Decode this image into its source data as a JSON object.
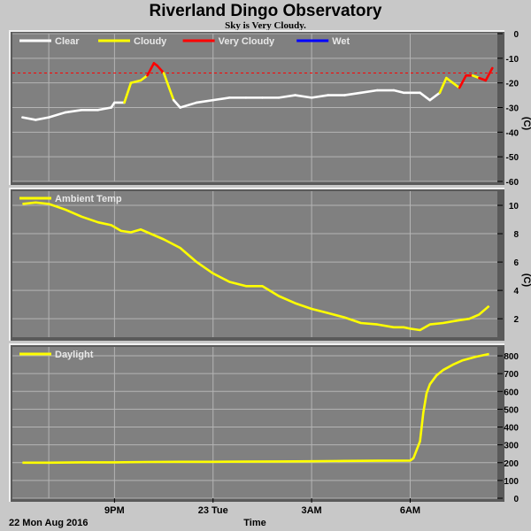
{
  "title": "Riverland Dingo Observatory",
  "subtitle": "Sky is Very Cloudy.",
  "x_axis": {
    "label": "Time",
    "start_label": "22 Mon Aug 2016",
    "ticks": [
      "9PM",
      "23 Tue",
      "3AM",
      "6AM"
    ]
  },
  "colors": {
    "page_bg": "#c8c8c8",
    "plot_bg": "#808080",
    "grid": "#b4b4b4",
    "clear": "#ffffff",
    "cloudy": "#ffff00",
    "very_cloudy": "#ff0000",
    "wet": "#0000ff",
    "ambient": "#ffff00",
    "daylight": "#ffff00",
    "threshold": "#ff0000"
  },
  "chart_data": [
    {
      "type": "line",
      "name": "sky",
      "legend": [
        {
          "label": "Clear",
          "color": "#ffffff"
        },
        {
          "label": "Cloudy",
          "color": "#ffff00"
        },
        {
          "label": "Very Cloudy",
          "color": "#ff0000"
        },
        {
          "label": "Wet",
          "color": "#0000ff"
        }
      ],
      "unit": "(C)",
      "ylim": [
        -60,
        0
      ],
      "yticks": [
        0,
        -10,
        -20,
        -30,
        -40,
        -50,
        -60
      ],
      "threshold": -16,
      "grid": true,
      "x_hours": [
        18.2,
        18.6,
        19.0,
        19.5,
        20.0,
        20.5,
        20.9,
        21.0,
        21.3,
        21.5,
        21.8,
        22.0,
        22.2,
        22.3,
        22.5,
        22.8,
        23.0,
        23.5,
        24.0,
        24.5,
        25.0,
        25.5,
        26.0,
        26.5,
        27.0,
        27.5,
        28.0,
        28.5,
        29.0,
        29.5,
        29.8,
        30.0,
        30.3,
        30.6,
        30.9,
        31.1,
        31.3,
        31.5,
        31.7,
        31.9,
        32.1,
        32.3,
        32.5
      ],
      "y_values": [
        -34,
        -35,
        -34,
        -32,
        -31,
        -31,
        -30,
        -28,
        -28,
        -20,
        -19,
        -17,
        -12,
        -13,
        -16,
        -27,
        -30,
        -28,
        -27,
        -26,
        -26,
        -26,
        -26,
        -25,
        -26,
        -25,
        -25,
        -24,
        -23,
        -23,
        -24,
        -24,
        -24,
        -27,
        -24,
        -18,
        -20,
        -22,
        -17,
        -17,
        -18,
        -19,
        -14
      ],
      "conditions": [
        "clear",
        "clear",
        "clear",
        "clear",
        "clear",
        "clear",
        "clear",
        "clear",
        "clear",
        "cloudy",
        "cloudy",
        "cloudy",
        "very_cloudy",
        "very_cloudy",
        "very_cloudy",
        "cloudy",
        "clear",
        "clear",
        "clear",
        "clear",
        "clear",
        "clear",
        "clear",
        "clear",
        "clear",
        "clear",
        "clear",
        "clear",
        "clear",
        "clear",
        "clear",
        "clear",
        "clear",
        "clear",
        "clear",
        "cloudy",
        "cloudy",
        "cloudy",
        "very_cloudy",
        "very_cloudy",
        "cloudy",
        "very_cloudy",
        "very_cloudy"
      ]
    },
    {
      "type": "line",
      "name": "ambient",
      "legend": [
        {
          "label": "Ambient Temp",
          "color": "#ffff00"
        }
      ],
      "unit": "(C)",
      "ylim": [
        0.7,
        11
      ],
      "yticks": [
        10,
        8,
        6,
        4,
        2
      ],
      "grid": true,
      "x_hours": [
        18.2,
        18.6,
        19.0,
        19.5,
        20.0,
        20.5,
        20.9,
        21.2,
        21.5,
        21.8,
        22.0,
        22.5,
        23.0,
        23.5,
        24.0,
        24.5,
        25.0,
        25.5,
        26.0,
        26.5,
        27.0,
        27.5,
        28.0,
        28.5,
        29.0,
        29.5,
        29.8,
        30.0,
        30.3,
        30.6,
        31.0,
        31.5,
        31.8,
        32.1,
        32.4
      ],
      "y_values": [
        10.1,
        10.2,
        10.1,
        9.7,
        9.2,
        8.8,
        8.6,
        8.2,
        8.1,
        8.3,
        8.1,
        7.6,
        7.0,
        6.0,
        5.2,
        4.6,
        4.3,
        4.3,
        3.6,
        3.1,
        2.7,
        2.4,
        2.1,
        1.7,
        1.6,
        1.4,
        1.4,
        1.3,
        1.2,
        1.6,
        1.7,
        1.9,
        2.0,
        2.3,
        2.9
      ]
    },
    {
      "type": "line",
      "name": "daylight",
      "legend": [
        {
          "label": "Daylight",
          "color": "#ffff00"
        }
      ],
      "unit": "",
      "ylim": [
        0,
        850
      ],
      "yticks": [
        800,
        700,
        600,
        500,
        400,
        300,
        200,
        100,
        0
      ],
      "grid": true,
      "x_hours": [
        18.2,
        19.0,
        20.0,
        21.0,
        22.0,
        23.0,
        24.0,
        25.0,
        26.0,
        27.0,
        28.0,
        29.0,
        30.0,
        30.1,
        30.3,
        30.4,
        30.5,
        30.6,
        30.8,
        31.0,
        31.3,
        31.6,
        32.0,
        32.4
      ],
      "y_values": [
        200,
        200,
        202,
        202,
        204,
        205,
        205,
        206,
        207,
        208,
        210,
        211,
        212,
        225,
        320,
        480,
        590,
        640,
        690,
        720,
        750,
        775,
        795,
        810
      ]
    }
  ]
}
